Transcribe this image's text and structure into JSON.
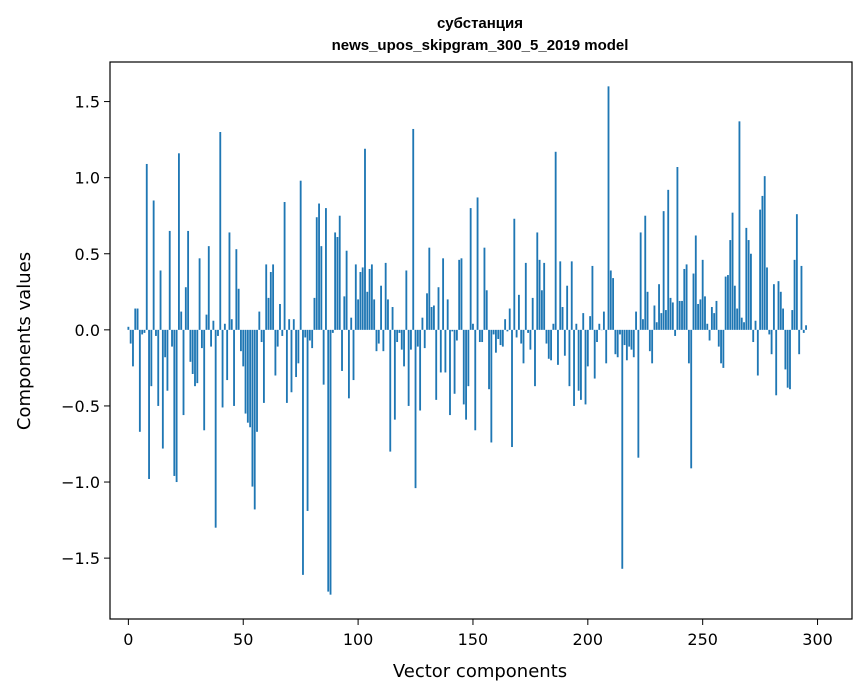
{
  "chart_data": {
    "type": "bar",
    "title": "субстанция",
    "subtitle": "news_upos_skipgram_300_5_2019 model",
    "xlabel": "Vector components",
    "ylabel": "Components values",
    "xlim": [
      -8,
      315
    ],
    "ylim": [
      -1.9,
      1.76
    ],
    "xticks": [
      0,
      50,
      100,
      150,
      200,
      250,
      300
    ],
    "yticks": [
      -1.5,
      -1.0,
      -0.5,
      0.0,
      0.5,
      1.0,
      1.5
    ],
    "ytick_labels": [
      "−1.5",
      "−1.0",
      "−0.5",
      "0.0",
      "0.5",
      "1.0",
      "1.5"
    ],
    "grid": false,
    "bar_color": "#1f77b4",
    "x_start": 0,
    "values": [
      0.02,
      -0.09,
      -0.24,
      0.14,
      0.14,
      -0.67,
      -0.03,
      -0.02,
      1.09,
      -0.98,
      -0.37,
      0.85,
      -0.04,
      -0.5,
      0.39,
      -0.78,
      -0.18,
      -0.4,
      0.65,
      -0.11,
      -0.96,
      -1.0,
      1.16,
      0.12,
      -0.56,
      0.28,
      0.65,
      -0.21,
      -0.29,
      -0.37,
      -0.35,
      0.47,
      -0.12,
      -0.66,
      0.1,
      0.55,
      -0.11,
      0.06,
      -1.3,
      -0.04,
      1.3,
      -0.51,
      0.04,
      -0.33,
      0.64,
      0.07,
      -0.5,
      0.53,
      0.27,
      -0.14,
      -0.24,
      -0.55,
      -0.61,
      -0.64,
      -1.03,
      -1.18,
      -0.67,
      0.12,
      -0.08,
      -0.48,
      0.43,
      0.21,
      0.38,
      0.43,
      -0.3,
      -0.11,
      0.17,
      -0.04,
      0.84,
      -0.48,
      0.07,
      -0.41,
      0.07,
      -0.31,
      -0.22,
      0.98,
      -1.61,
      -0.05,
      -1.19,
      -0.07,
      -0.12,
      0.21,
      0.74,
      0.83,
      0.55,
      -0.36,
      0.8,
      -1.72,
      -1.74,
      -0.02,
      0.64,
      0.61,
      0.75,
      -0.27,
      0.22,
      0.52,
      -0.45,
      0.08,
      -0.33,
      0.43,
      0.2,
      0.38,
      0.41,
      1.19,
      0.25,
      0.4,
      0.43,
      0.2,
      -0.14,
      -0.09,
      0.29,
      -0.14,
      0.44,
      0.2,
      -0.8,
      0.15,
      -0.59,
      -0.08,
      -0.02,
      -0.13,
      -0.24,
      0.39,
      -0.5,
      -0.13,
      1.32,
      -1.04,
      -0.11,
      -0.53,
      0.08,
      -0.12,
      0.24,
      0.54,
      0.15,
      0.16,
      -0.46,
      0.28,
      -0.28,
      0.47,
      -0.28,
      0.2,
      -0.56,
      -0.01,
      -0.42,
      -0.07,
      0.46,
      0.47,
      -0.49,
      -0.59,
      -0.37,
      0.8,
      0.04,
      -0.66,
      0.87,
      -0.08,
      -0.08,
      0.54,
      0.26,
      -0.39,
      -0.74,
      -0.03,
      -0.15,
      -0.06,
      -0.1,
      -0.11,
      0.07,
      -0.01,
      0.14,
      -0.77,
      0.73,
      -0.05,
      0.23,
      -0.09,
      -0.22,
      0.44,
      -0.02,
      -0.13,
      0.21,
      -0.37,
      0.64,
      0.46,
      0.26,
      0.44,
      -0.09,
      -0.19,
      -0.2,
      0.04,
      1.17,
      -0.23,
      0.45,
      0.15,
      -0.17,
      0.29,
      -0.37,
      0.45,
      -0.5,
      0.04,
      -0.4,
      -0.46,
      0.11,
      -0.49,
      -0.24,
      0.09,
      0.42,
      -0.32,
      -0.08,
      0.04,
      0.0,
      0.12,
      -0.22,
      1.6,
      0.39,
      0.34,
      -0.16,
      -0.18,
      -0.03,
      -1.57,
      -0.1,
      -0.2,
      -0.11,
      -0.13,
      -0.18,
      0.12,
      -0.84,
      0.64,
      0.07,
      0.75,
      0.25,
      -0.14,
      -0.22,
      0.16,
      0.05,
      0.3,
      0.11,
      0.78,
      0.13,
      0.92,
      0.21,
      0.18,
      -0.04,
      1.07,
      0.19,
      0.19,
      0.4,
      0.43,
      -0.22,
      -0.91,
      0.37,
      0.62,
      0.17,
      0.2,
      0.46,
      0.22,
      0.04,
      -0.07,
      0.15,
      0.11,
      0.19,
      -0.11,
      -0.22,
      -0.25,
      0.35,
      0.36,
      0.59,
      0.77,
      0.29,
      0.14,
      1.37,
      0.08,
      0.05,
      0.67,
      0.59,
      0.5,
      -0.08,
      0.06,
      -0.3,
      0.79,
      0.88,
      1.01,
      0.41,
      -0.03,
      -0.16,
      0.3,
      -0.43,
      0.32,
      0.25,
      0.14,
      -0.26,
      -0.38,
      -0.39,
      0.13,
      0.46,
      0.76,
      -0.16,
      0.42,
      -0.02,
      0.03
    ]
  }
}
